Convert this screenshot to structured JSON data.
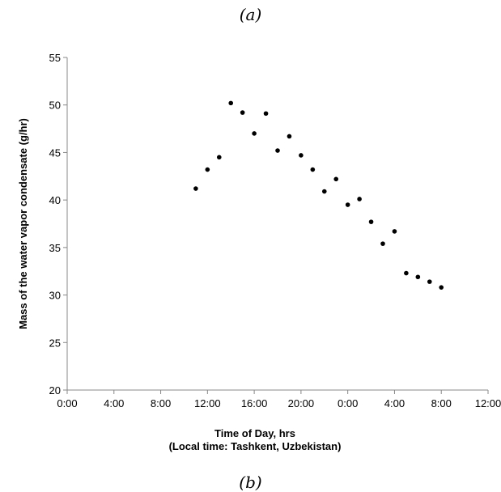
{
  "captions": {
    "top": "(a)",
    "bottom": "(b)"
  },
  "chart_data": {
    "type": "scatter",
    "title": "",
    "xlabel": "Time of Day, hrs",
    "xlabel_sub": "(Local time: Tashkent, Uzbekistan)",
    "ylabel": "Mass of the water vapor condensate (g/hr)",
    "x_tick_labels": [
      "0:00",
      "4:00",
      "8:00",
      "12:00",
      "16:00",
      "20:00",
      "0:00",
      "4:00",
      "8:00",
      "12:00"
    ],
    "x_tick_hours": [
      0,
      4,
      8,
      12,
      16,
      20,
      24,
      28,
      32,
      36
    ],
    "xlim_hours": [
      0,
      36
    ],
    "y_ticks": [
      20,
      25,
      30,
      35,
      40,
      45,
      50,
      55
    ],
    "ylim": [
      20,
      55
    ],
    "grid": false,
    "legend": "none",
    "marker_color": "#000000",
    "series": [
      {
        "x_hours": [
          11,
          12,
          13,
          14,
          15,
          16,
          17,
          18,
          19,
          20,
          21,
          22,
          23,
          24,
          25,
          26,
          27,
          28,
          29,
          30,
          31,
          32
        ],
        "y": [
          41.2,
          43.2,
          44.5,
          50.2,
          49.2,
          47.0,
          49.1,
          45.2,
          46.7,
          44.7,
          43.2,
          40.9,
          42.2,
          39.5,
          40.1,
          37.7,
          35.4,
          36.7,
          32.3,
          31.9,
          31.4,
          30.8
        ]
      }
    ]
  }
}
